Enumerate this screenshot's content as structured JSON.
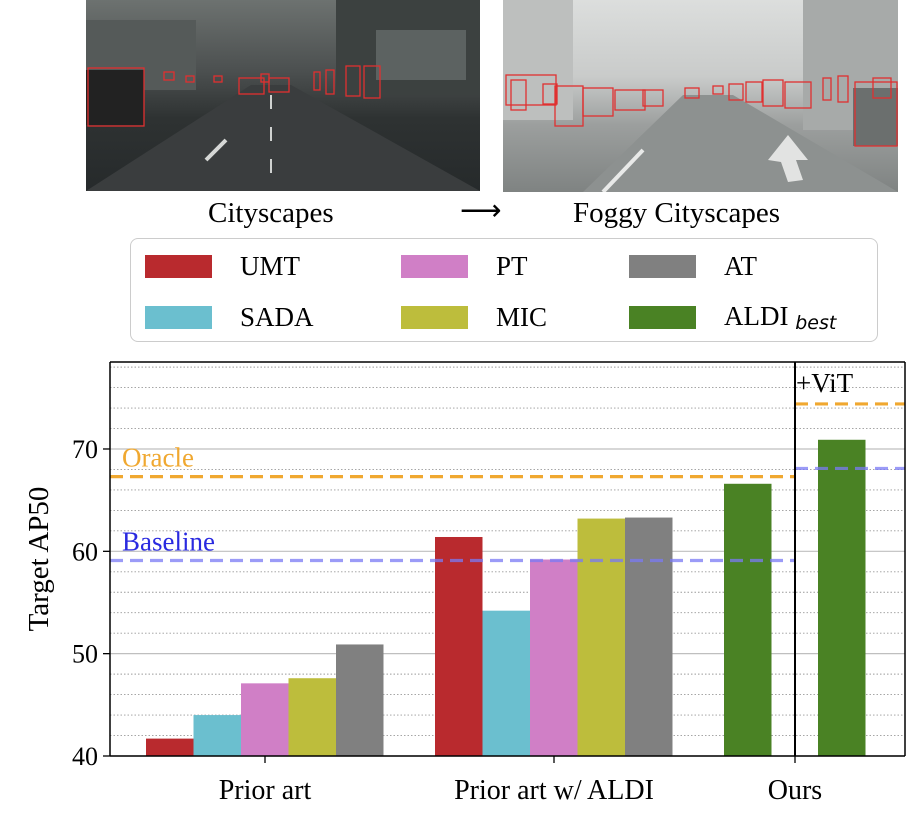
{
  "images": {
    "left_caption": "Cityscapes",
    "arrow": "⟶",
    "right_caption": "Foggy Cityscapes"
  },
  "legend": {
    "items": [
      {
        "label": "UMT",
        "sub": "",
        "color": "#b92a2e"
      },
      {
        "label": "SADA",
        "sub": "",
        "color": "#6bbfcf"
      },
      {
        "label": "PT",
        "sub": "",
        "color": "#d07fc6"
      },
      {
        "label": "MIC",
        "sub": "",
        "color": "#bdbd3c"
      },
      {
        "label": "AT",
        "sub": "",
        "color": "#808080"
      },
      {
        "label": "ALDI",
        "sub": "best",
        "color": "#4a8224"
      }
    ]
  },
  "chart_data": {
    "type": "bar",
    "ylabel": "Target AP50",
    "ylim": [
      40,
      78.5
    ],
    "yticks": [
      40,
      50,
      60,
      70
    ],
    "minor_gridlines": true,
    "groups": [
      {
        "label": "Prior art",
        "bars": [
          {
            "series": "UMT",
            "value": 41.7
          },
          {
            "series": "SADA",
            "value": 44.0
          },
          {
            "series": "PT",
            "value": 47.1
          },
          {
            "series": "MIC",
            "value": 47.6
          },
          {
            "series": "AT",
            "value": 50.9
          }
        ]
      },
      {
        "label": "Prior art w/ ALDI",
        "bars": [
          {
            "series": "UMT",
            "value": 61.4
          },
          {
            "series": "SADA",
            "value": 54.2
          },
          {
            "series": "PT",
            "value": 59.2
          },
          {
            "series": "MIC",
            "value": 63.2
          },
          {
            "series": "AT",
            "value": 63.3
          }
        ]
      },
      {
        "label": "Ours",
        "bars": [
          {
            "series": "ALDI",
            "value": 66.6
          }
        ]
      },
      {
        "label": "",
        "bars": [
          {
            "series": "ALDI",
            "value": 70.9
          }
        ]
      }
    ],
    "reference_lines": [
      {
        "label": "Oracle",
        "value": 67.3,
        "color": "#f0a830",
        "span": "main"
      },
      {
        "label": "Baseline",
        "value": 59.1,
        "color": "#7a7af5",
        "span": "main"
      },
      {
        "label": "",
        "value": 74.4,
        "color": "#f0a830",
        "span": "vit"
      },
      {
        "label": "",
        "value": 68.1,
        "color": "#7a7af5",
        "span": "vit"
      }
    ],
    "vit_label": "+ViT"
  }
}
